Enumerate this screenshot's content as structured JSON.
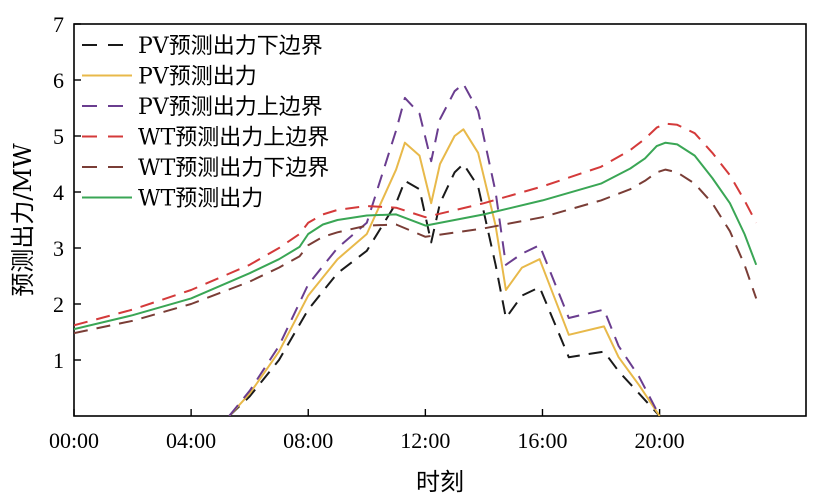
{
  "chart_data": {
    "type": "line",
    "xlabel": "时刻",
    "ylabel": "预测出力/MW",
    "xlim": [
      0,
      25
    ],
    "ylim": [
      0,
      7
    ],
    "x_ticks": [
      {
        "value": 0,
        "label": "00:00"
      },
      {
        "value": 4,
        "label": "04:00"
      },
      {
        "value": 8,
        "label": "08:00"
      },
      {
        "value": 12,
        "label": "12:00"
      },
      {
        "value": 16,
        "label": "16:00"
      },
      {
        "value": 20,
        "label": "20:00"
      }
    ],
    "y_ticks": [
      {
        "value": 1,
        "label": "1"
      },
      {
        "value": 2,
        "label": "2"
      },
      {
        "value": 3,
        "label": "3"
      },
      {
        "value": 4,
        "label": "4"
      },
      {
        "value": 5,
        "label": "5"
      },
      {
        "value": 6,
        "label": "6"
      },
      {
        "value": 7,
        "label": "7"
      }
    ],
    "legend_position": "top-left",
    "grid": false,
    "series": [
      {
        "name": "PV预测出力下边界",
        "color": "#1a1a1a",
        "dash": "dashed",
        "x": [
          5.3,
          6,
          7,
          8,
          9,
          10,
          11,
          11.3,
          11.8,
          12.2,
          12.5,
          13,
          13.3,
          13.8,
          14.4,
          14.75,
          15.3,
          15.9,
          16.9,
          18.1,
          18.6,
          19.3,
          20
        ],
        "y": [
          0,
          0.35,
          1.0,
          1.9,
          2.55,
          2.95,
          3.8,
          4.2,
          4.05,
          3.1,
          3.8,
          4.35,
          4.5,
          4.1,
          2.7,
          1.75,
          2.15,
          2.3,
          1.05,
          1.15,
          0.8,
          0.4,
          0
        ]
      },
      {
        "name": "PV预测出力",
        "color": "#e8b94a",
        "dash": "solid",
        "x": [
          5.3,
          6,
          7,
          8,
          9,
          10,
          11,
          11.3,
          11.8,
          12.2,
          12.5,
          13,
          13.3,
          13.8,
          14.4,
          14.75,
          15.3,
          15.9,
          16.9,
          18.1,
          18.6,
          19.3,
          20
        ],
        "y": [
          0,
          0.4,
          1.15,
          2.15,
          2.8,
          3.25,
          4.4,
          4.88,
          4.65,
          3.8,
          4.5,
          5.0,
          5.12,
          4.7,
          3.4,
          2.25,
          2.65,
          2.8,
          1.45,
          1.6,
          1.05,
          0.55,
          0
        ]
      },
      {
        "name": "PV预测出力上边界",
        "color": "#6a3d8f",
        "dash": "dashed",
        "x": [
          5.3,
          6,
          7,
          8,
          9,
          10,
          11,
          11.3,
          11.8,
          12.2,
          12.5,
          13,
          13.3,
          13.8,
          14.4,
          14.75,
          15.3,
          15.9,
          16.9,
          18.1,
          18.6,
          19.3,
          20
        ],
        "y": [
          0,
          0.45,
          1.25,
          2.35,
          3.0,
          3.45,
          5.1,
          5.68,
          5.4,
          4.55,
          5.3,
          5.8,
          5.93,
          5.45,
          4.0,
          2.7,
          2.9,
          3.05,
          1.75,
          1.9,
          1.25,
          0.7,
          0
        ]
      },
      {
        "name": "WT预测出力上边界",
        "color": "#d43a3a",
        "dash": "dashed",
        "x": [
          0,
          2,
          4,
          6,
          7,
          7.7,
          8,
          8.5,
          9,
          10,
          11,
          12,
          14,
          16,
          18,
          19,
          19.5,
          19.9,
          20.2,
          20.6,
          21.2,
          21.8,
          22.4,
          22.9,
          23.3
        ],
        "y": [
          1.62,
          1.9,
          2.25,
          2.7,
          3.0,
          3.25,
          3.45,
          3.6,
          3.68,
          3.75,
          3.72,
          3.55,
          3.8,
          4.1,
          4.45,
          4.75,
          4.95,
          5.15,
          5.22,
          5.2,
          5.05,
          4.7,
          4.3,
          3.85,
          3.45
        ]
      },
      {
        "name": "WT预测出力下边界",
        "color": "#7a3d36",
        "dash": "dashed",
        "x": [
          0,
          2,
          4,
          6,
          7,
          7.7,
          8,
          8.5,
          9,
          10,
          11,
          12,
          14,
          16,
          18,
          19,
          19.5,
          19.9,
          20.2,
          20.6,
          21.2,
          21.8,
          22.4,
          22.9,
          23.3
        ],
        "y": [
          1.48,
          1.7,
          2.0,
          2.4,
          2.65,
          2.85,
          3.05,
          3.2,
          3.28,
          3.4,
          3.42,
          3.2,
          3.35,
          3.55,
          3.85,
          4.05,
          4.2,
          4.35,
          4.4,
          4.35,
          4.15,
          3.8,
          3.3,
          2.7,
          2.1
        ]
      },
      {
        "name": "WT预测出力",
        "color": "#3aa655",
        "dash": "solid",
        "x": [
          0,
          2,
          4,
          6,
          7,
          7.7,
          8,
          8.5,
          9,
          10,
          11,
          12,
          14,
          16,
          18,
          19,
          19.5,
          19.9,
          20.2,
          20.6,
          21.2,
          21.8,
          22.4,
          22.9,
          23.3
        ],
        "y": [
          1.55,
          1.8,
          2.1,
          2.55,
          2.8,
          3.02,
          3.25,
          3.42,
          3.5,
          3.58,
          3.6,
          3.4,
          3.6,
          3.85,
          4.15,
          4.42,
          4.6,
          4.82,
          4.88,
          4.85,
          4.65,
          4.25,
          3.8,
          3.25,
          2.7
        ]
      }
    ]
  }
}
